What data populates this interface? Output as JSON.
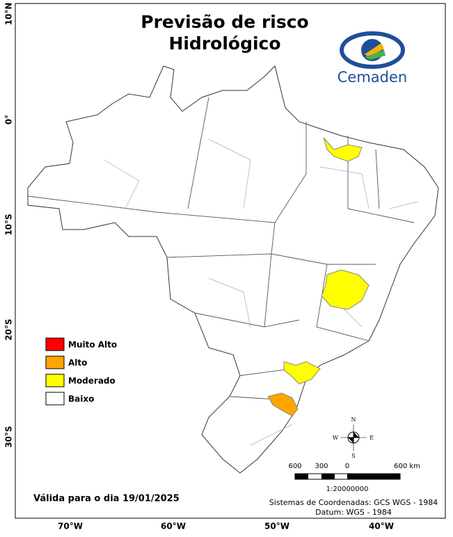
{
  "header": {
    "title_lines": [
      "Previsão de risco",
      "Hidrológico"
    ],
    "logo": "Cemaden"
  },
  "latitude_labels": [
    "10°N",
    "0°",
    "10°S",
    "20°S",
    "30°S"
  ],
  "longitude_labels": [
    "70°W",
    "60°W",
    "50°W",
    "40°W"
  ],
  "legend": [
    {
      "label": "Muito Alto",
      "color": "#ff0000"
    },
    {
      "label": "Alto",
      "color": "#ffa500"
    },
    {
      "label": "Moderado",
      "color": "#ffff00"
    },
    {
      "label": "Baixo",
      "color": "#ffffff"
    }
  ],
  "compass": {
    "north": "N",
    "south": "S",
    "east": "E",
    "west": "W"
  },
  "scale": {
    "labels": [
      "600",
      "300",
      "0",
      "600 km"
    ],
    "ratio": "1:20000000"
  },
  "valid_date": "Válida para o dia 19/01/2025",
  "coordinates": [
    "Sistemas de Coordenadas: GCS WGS - 1984",
    "Datum: WGS - 1984"
  ]
}
